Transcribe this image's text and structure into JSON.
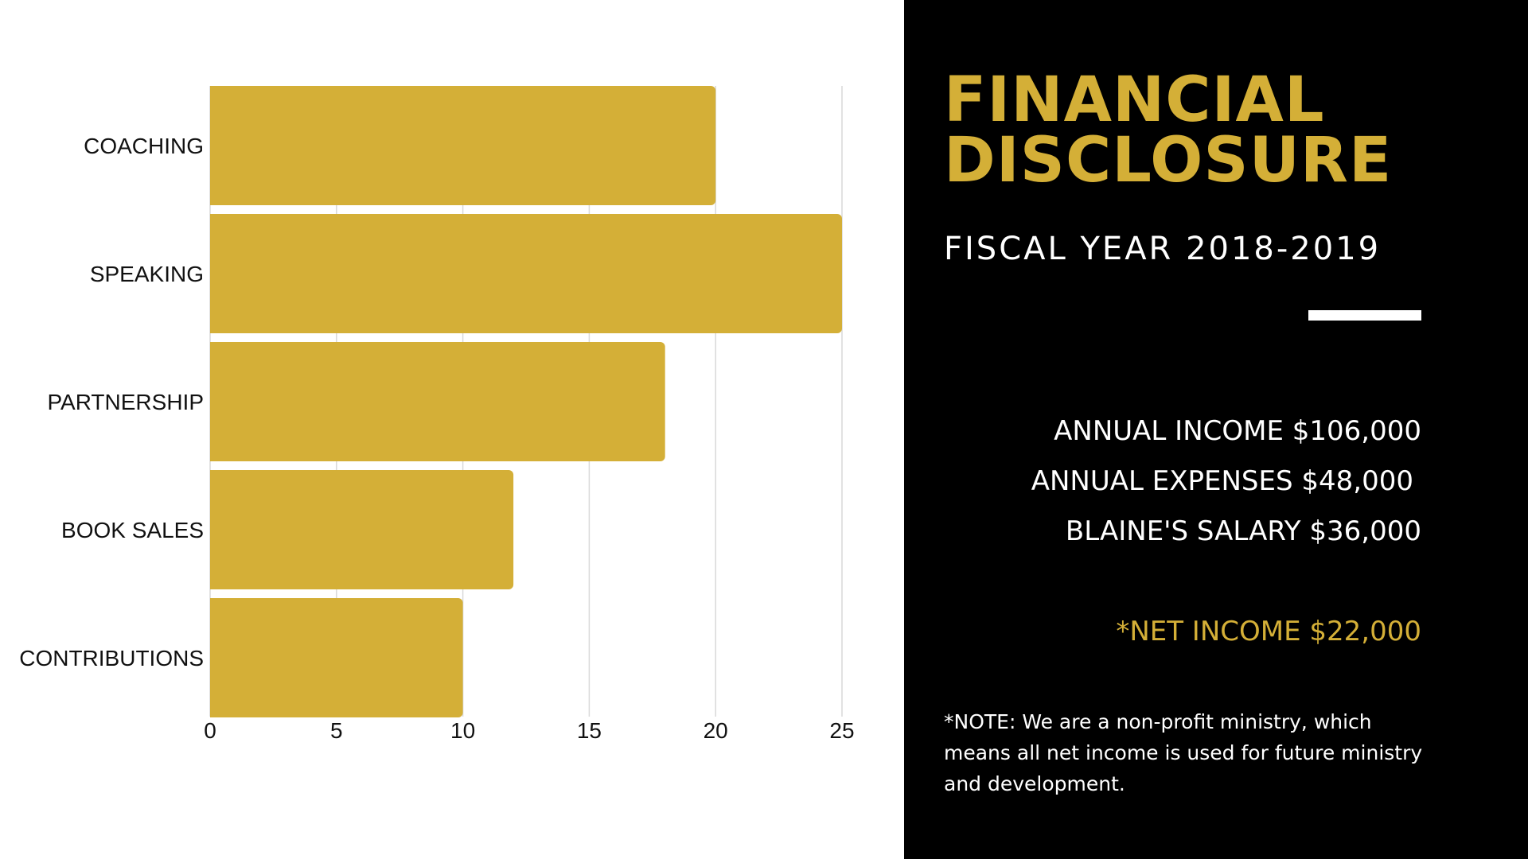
{
  "chart_data": {
    "type": "bar",
    "orientation": "horizontal",
    "categories": [
      "COACHING",
      "SPEAKING",
      "PARTNERSHIP",
      "BOOK SALES",
      "CONTRIBUTIONS"
    ],
    "values": [
      20,
      25,
      18,
      12,
      10
    ],
    "xlim": [
      0,
      25
    ],
    "xticks": [
      0,
      5,
      10,
      15,
      20,
      25
    ],
    "grid": true,
    "title": "",
    "xlabel": "",
    "ylabel": "",
    "bar_color": "#d4af37"
  },
  "panel": {
    "title_line1": "FINANCIAL",
    "title_line2": "DISCLOSURE",
    "subtitle": "FISCAL YEAR 2018-2019",
    "annual_income": "ANNUAL INCOME $106,000",
    "annual_expenses": "ANNUAL EXPENSES $48,000",
    "salary": "BLAINE'S SALARY $36,000",
    "net_income": "*NET INCOME $22,000",
    "note": "*NOTE: We are a non-profit ministry, which means all net income is used for future ministry and development.",
    "accent_color": "#d4af37",
    "background_color": "#000000"
  }
}
